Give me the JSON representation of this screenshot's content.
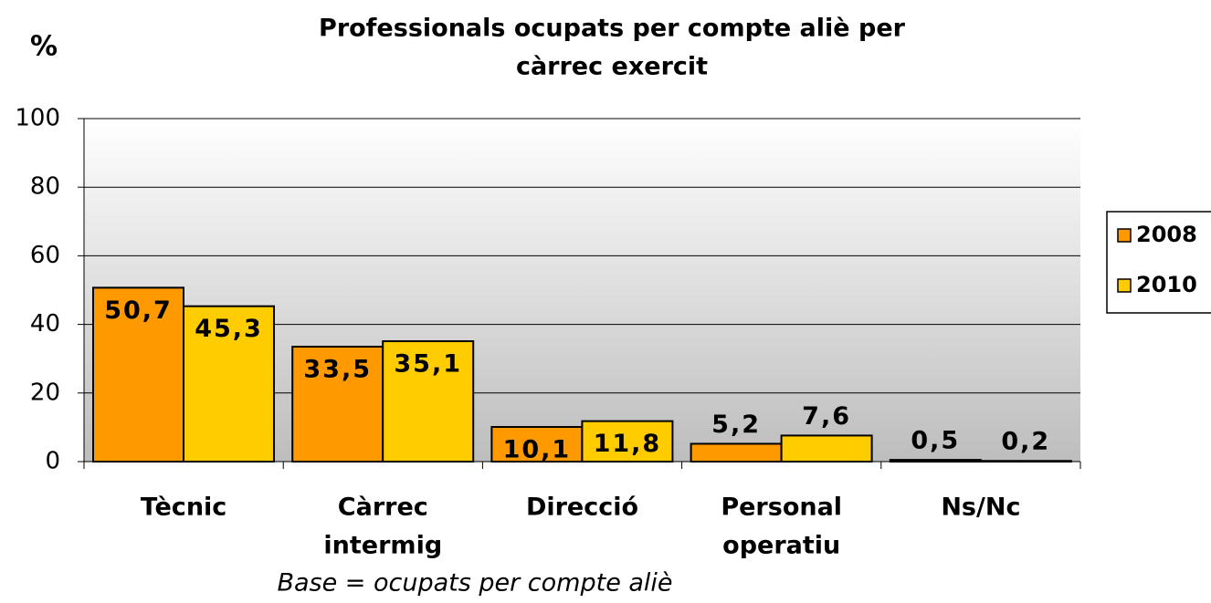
{
  "chart_data": {
    "type": "bar",
    "title": [
      "Professionals ocupats per compte aliè per",
      "càrrec exercit"
    ],
    "y_label": "%",
    "note": "Base = ocupats per compte aliè",
    "categories": [
      [
        "Tècnic"
      ],
      [
        "Càrrec",
        "intermig"
      ],
      [
        "Direcció"
      ],
      [
        "Personal",
        "operatiu"
      ],
      [
        "Ns/Nc"
      ]
    ],
    "series": [
      {
        "name": "2008",
        "color": "#ff9900",
        "values": [
          50.7,
          33.5,
          10.1,
          5.2,
          0.5
        ],
        "value_labels": [
          "50,7",
          "33,5",
          "10,1",
          "5,2",
          "0,5"
        ]
      },
      {
        "name": "2010",
        "color": "#ffcc00",
        "values": [
          45.3,
          35.1,
          11.8,
          7.6,
          0.2
        ],
        "value_labels": [
          "45,3",
          "35,1",
          "11,8",
          "7,6",
          "0,2"
        ]
      }
    ],
    "ylim": [
      0,
      100
    ],
    "yticks": [
      0,
      20,
      40,
      60,
      80,
      100
    ],
    "grid": true,
    "legend": "right"
  }
}
